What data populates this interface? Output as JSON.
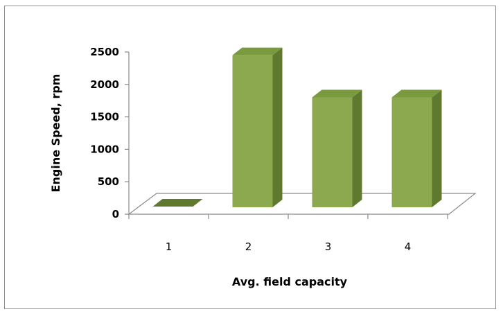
{
  "chart_data": {
    "type": "bar",
    "style": "3d-column",
    "categories": [
      "1",
      "2",
      "3",
      "4"
    ],
    "values": [
      0,
      2450,
      1800,
      1800
    ],
    "xlabel": "Avg. field capacity",
    "ylabel": "Engine Speed, rpm",
    "ylim": [
      0,
      2500
    ],
    "yticks": [
      "0",
      "500",
      "1000",
      "1500",
      "2000",
      "2500"
    ],
    "grid": false,
    "legend": "none",
    "colors": {
      "front": "#8DA950",
      "top": "#799A3F",
      "side": "#5F7A2E",
      "floor_edge": "#8a8a8a"
    }
  }
}
